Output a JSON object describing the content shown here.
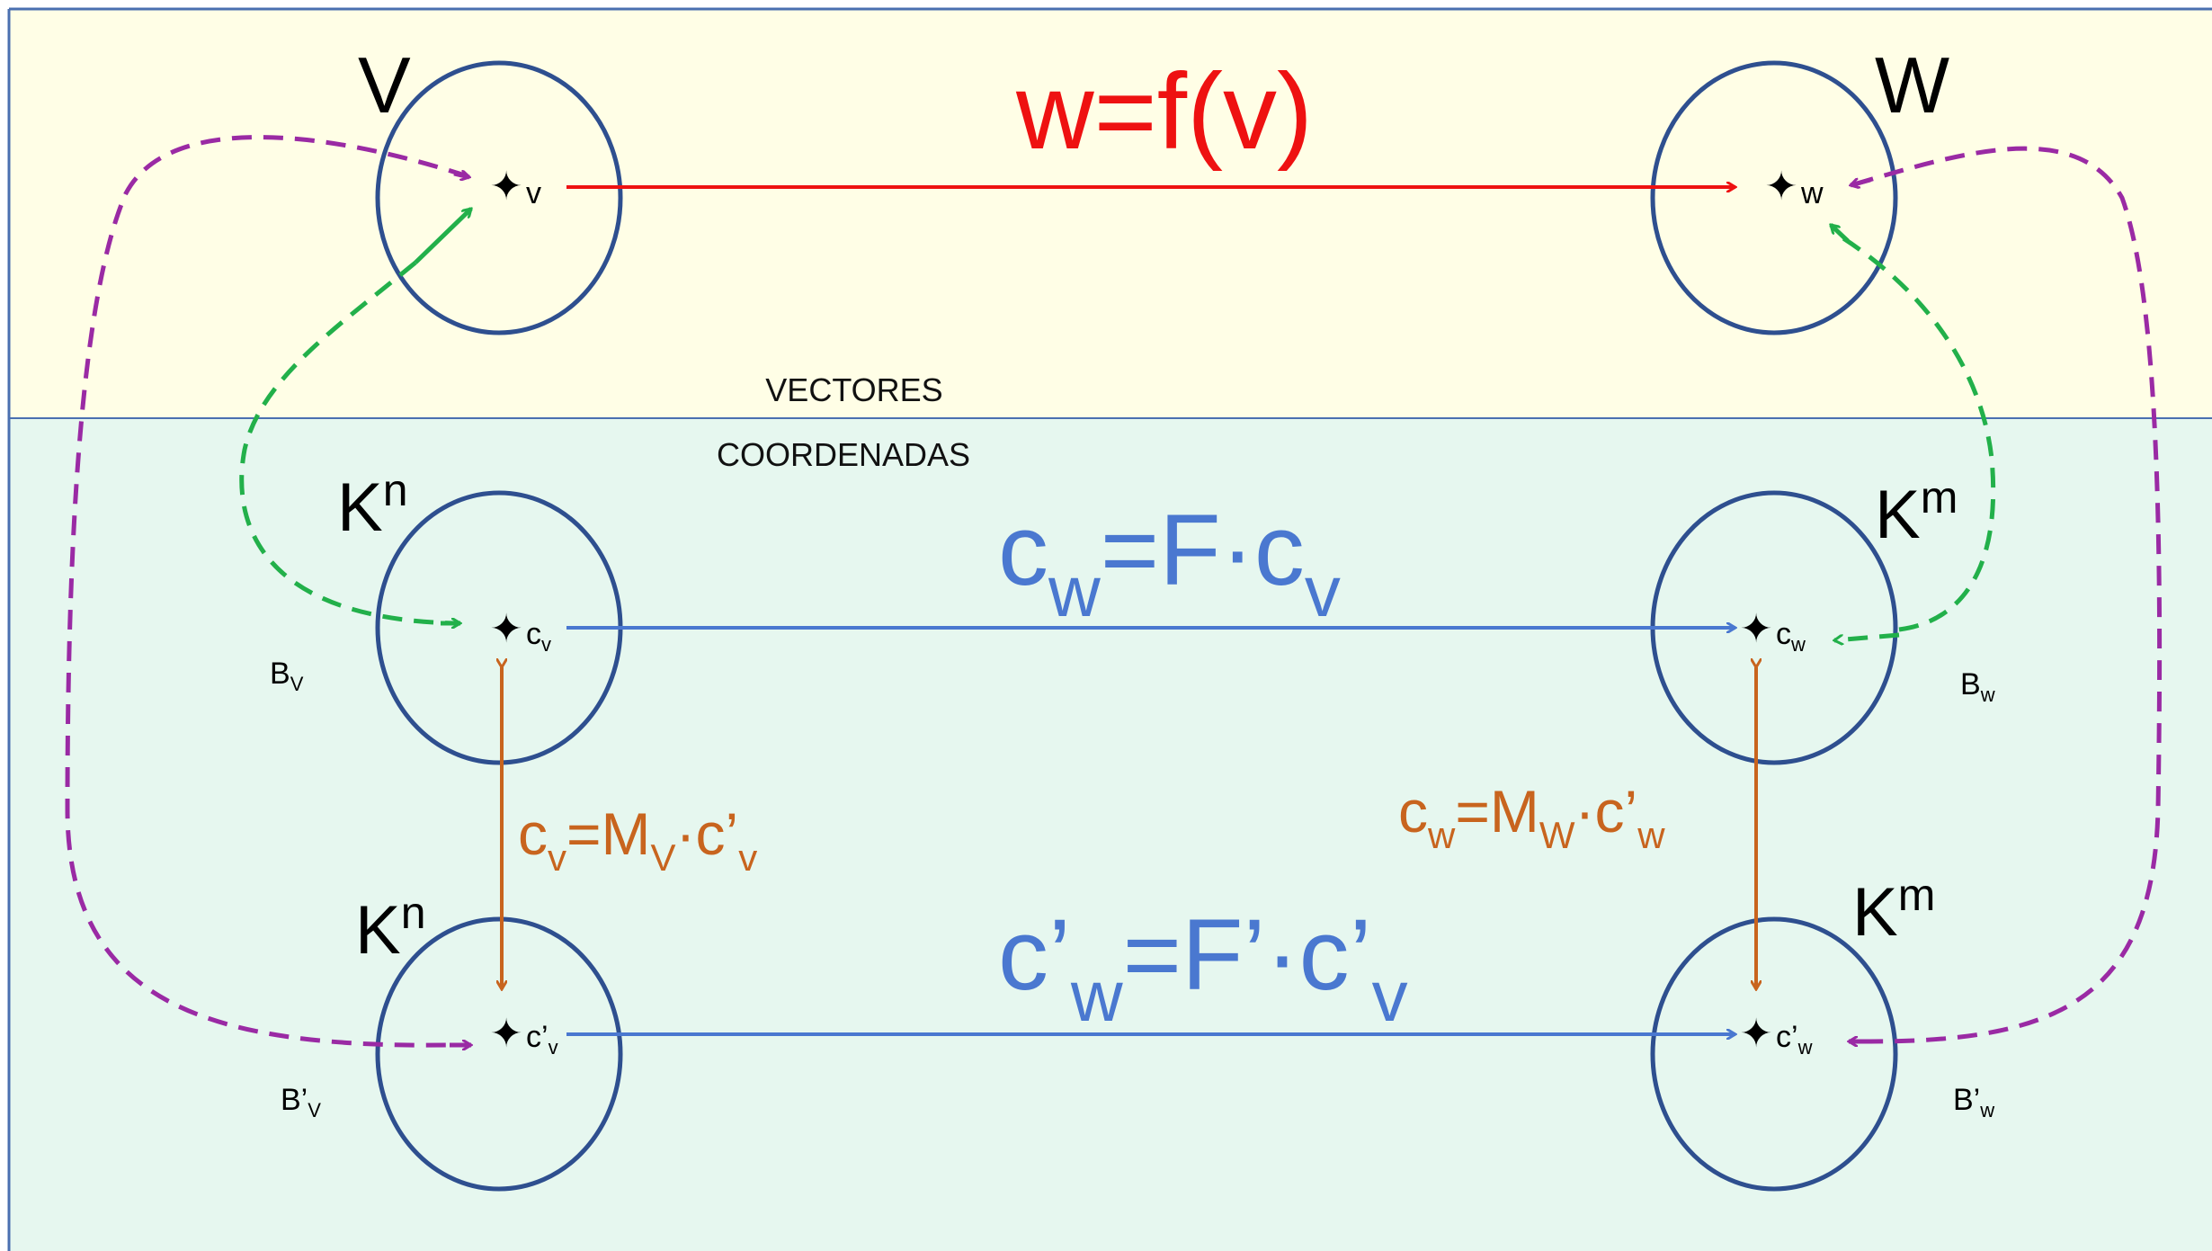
{
  "sections": {
    "top": "VECTORES",
    "bottom": "COORDENADAS"
  },
  "spaces": {
    "V": "V",
    "W": "W",
    "Kn_1": {
      "base": "K",
      "sup": "n"
    },
    "Km_1": {
      "base": "K",
      "sup": "m"
    },
    "Kn_2": {
      "base": "K",
      "sup": "n"
    },
    "Km_2": {
      "base": "K",
      "sup": "m"
    }
  },
  "points": {
    "v": "v",
    "w": "w",
    "cv": {
      "base": "c",
      "sub": "v"
    },
    "cw": {
      "base": "c",
      "sub": "w"
    },
    "cpv": {
      "base": "c’",
      "sub": "v"
    },
    "cpw": {
      "base": "c’",
      "sub": "w"
    }
  },
  "bases": {
    "Bv": {
      "base": "B",
      "sub": "V"
    },
    "Bw": {
      "base": "B",
      "sub": "w"
    },
    "Bpv": {
      "base": "B’",
      "sub": "V"
    },
    "Bpw": {
      "base": "B’",
      "sub": "w"
    }
  },
  "equations": {
    "f": "w=f(v)",
    "F": {
      "t1": "c",
      "s1": "w",
      "t2": "=F·c",
      "s2": "v"
    },
    "Fp": {
      "t1": "c’",
      "s1": "w",
      "t2": "=F’·c’",
      "s2": "v"
    },
    "Mv": {
      "t1": "c",
      "s1": "v",
      "t2": "=M",
      "s2": "V",
      "t3": "·c’",
      "s3": "v"
    },
    "Mw": {
      "t1": "c",
      "s1": "w",
      "t2": "=M",
      "s2": "W",
      "t3": "·c’",
      "s3": "w"
    }
  },
  "colors": {
    "top_bg": "#fffee6",
    "bottom_bg": "#e6f7ef",
    "circle": "#2e4f8f",
    "red": "#ee1111",
    "blue": "#4a78d0",
    "orange": "#c8641e",
    "green": "#22b04a",
    "purple": "#9a2aa4"
  }
}
